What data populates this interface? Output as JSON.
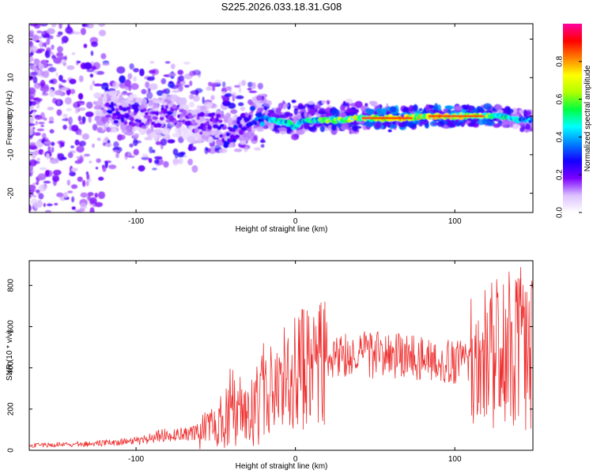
{
  "title": "S225.2026.033.18.31.G08",
  "colors": {
    "snr_line": "#ee2f2f",
    "frame": "#000000",
    "background": "#ffffff"
  },
  "chart_data": [
    {
      "type": "heatmap",
      "xlabel": "Height of straight line (km)",
      "ylabel": "Frequency (Hz)",
      "xlim": [
        -167,
        149
      ],
      "ylim": [
        -25,
        24
      ],
      "xticks": [
        -100,
        0,
        100
      ],
      "yticks": [
        -20,
        -10,
        0,
        10,
        20
      ],
      "colorbar": {
        "label": "Normalized spectral amplitude",
        "range": [
          0,
          1
        ],
        "ticks": [
          0.0,
          0.2,
          0.4,
          0.6,
          0.8
        ],
        "tick_labels": [
          "0.0",
          "0.2",
          "0.4",
          "0.6",
          "0.8"
        ],
        "colormap": [
          "#ffffff",
          "#dcc0ff",
          "#7a00ff",
          "#1400ff",
          "#0080ff",
          "#00ffff",
          "#00ff40",
          "#b0ff00",
          "#ffff00",
          "#ff8000",
          "#ff0000",
          "#ff00a0"
        ]
      },
      "ridge": {
        "heights": [
          -115,
          -100,
          -90,
          -80,
          -70,
          -60,
          -50,
          -43,
          -35,
          -28,
          -22,
          -15,
          -8,
          -3,
          0,
          5,
          12,
          20,
          30,
          40,
          50,
          60,
          70,
          80,
          90,
          100,
          110,
          120,
          130,
          140,
          148
        ],
        "frequency": [
          1,
          0,
          -1.5,
          1,
          -1,
          -2,
          -1,
          -6,
          -3,
          0,
          0.5,
          -1,
          -1.5,
          -2,
          -3,
          -1,
          -1,
          -1,
          -1,
          -0.5,
          -0.5,
          -0.5,
          -0.5,
          0,
          0,
          0,
          0,
          0,
          0,
          -1,
          -1
        ],
        "amplitude": [
          0.3,
          0.25,
          0.22,
          0.25,
          0.2,
          0.22,
          0.25,
          0.3,
          0.3,
          0.35,
          0.4,
          0.5,
          0.55,
          0.55,
          0.5,
          0.55,
          0.6,
          0.65,
          0.7,
          0.78,
          0.8,
          0.82,
          0.82,
          0.85,
          0.85,
          0.82,
          0.8,
          0.7,
          0.6,
          0.5,
          0.45
        ]
      }
    },
    {
      "type": "line",
      "xlabel": "Height of straight line (km)",
      "ylabel": "SNR (10 * v/v)",
      "xlim": [
        -167,
        149
      ],
      "ylim": [
        0,
        920
      ],
      "xticks": [
        -100,
        0,
        100
      ],
      "yticks": [
        0,
        200,
        400,
        600,
        800
      ],
      "envelope": {
        "heights": [
          -167,
          -140,
          -120,
          -100,
          -85,
          -70,
          -60,
          -50,
          -42,
          -35,
          -30,
          -25,
          -20,
          -15,
          -10,
          -5,
          0,
          10,
          20,
          30,
          40,
          50,
          60,
          70,
          80,
          90,
          100,
          110,
          120,
          130,
          140,
          149
        ],
        "snr": [
          25,
          28,
          35,
          45,
          70,
          80,
          90,
          110,
          210,
          180,
          150,
          200,
          270,
          300,
          330,
          350,
          380,
          410,
          430,
          450,
          460,
          465,
          460,
          455,
          450,
          440,
          430,
          420,
          450,
          480,
          500,
          460
        ]
      }
    }
  ]
}
